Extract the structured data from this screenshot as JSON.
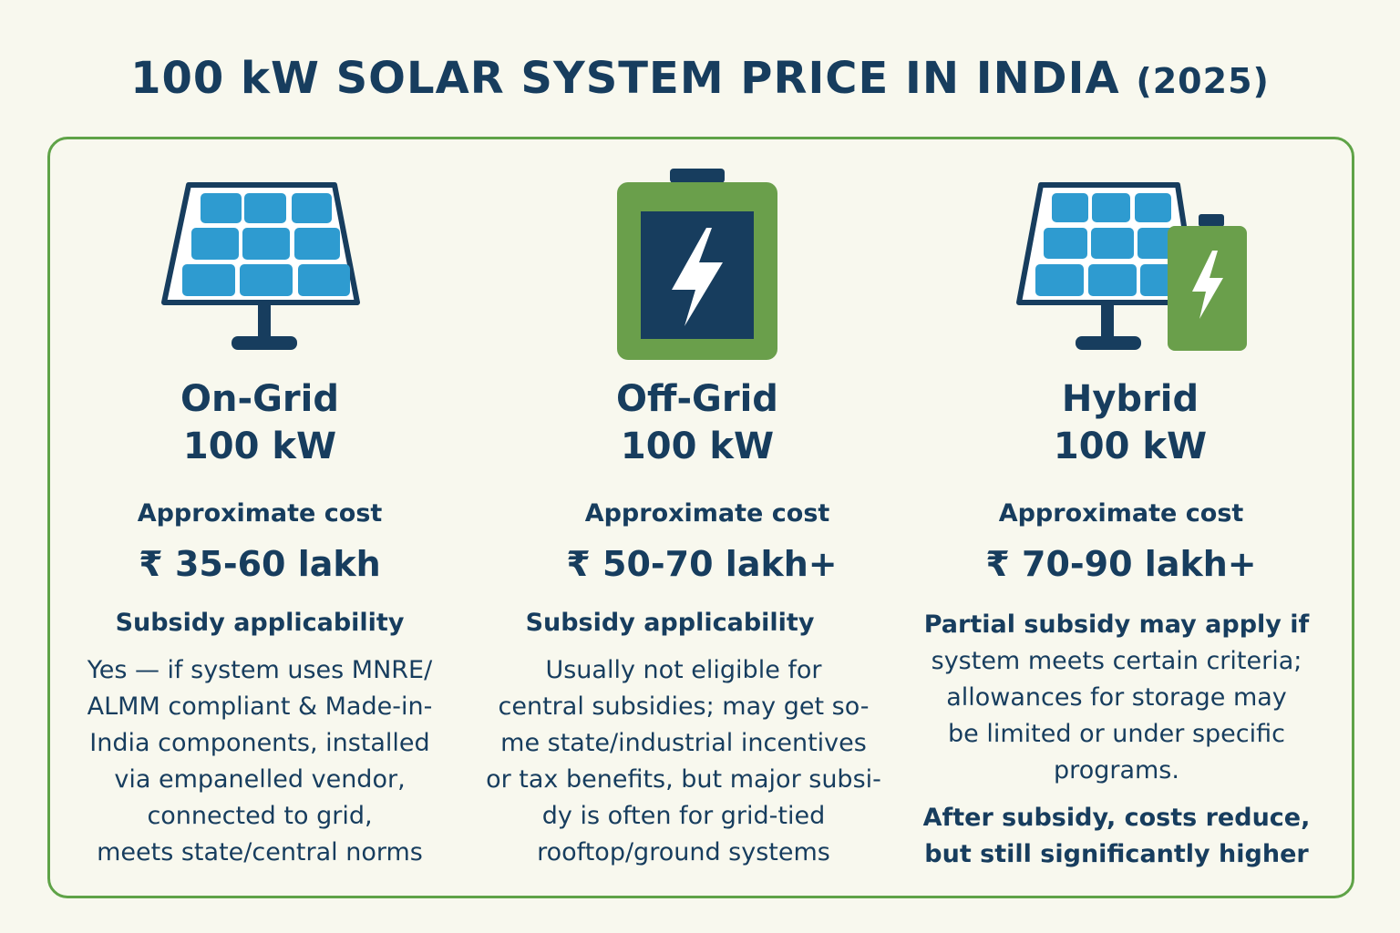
{
  "title": {
    "main": "100 kW SOLAR SYSTEM PRICE IN INDIA",
    "year": "(2025)"
  },
  "colors": {
    "navy": "#173d5e",
    "panel_blue": "#2e9bd0",
    "battery_green": "#6a9f4b",
    "border_green": "#5fa347",
    "background": "#f8f8ee"
  },
  "columns": [
    {
      "icon": "solar-panel-icon",
      "name": "On-Grid",
      "capacity": "100 kW",
      "cost_label": "Approximate cost",
      "price": "₹ 35-60 lakh",
      "subsidy_label": "Subsidy applicability",
      "details": [
        "Yes — if system uses MNRE/",
        "ALMM compliant & Made-in-",
        "India components, installed",
        "via empanelled vendor,",
        "connected to grid,",
        "meets state/central norms"
      ]
    },
    {
      "icon": "battery-icon",
      "name": "Off-Grid",
      "capacity": "100 kW",
      "cost_label": "Approximate cost",
      "price": "₹ 50-70 lakh+",
      "subsidy_label": "Subsidy applicability",
      "details": [
        "Usually not eligible for",
        "central subsidies; may get so-",
        "me state/industrial incentives",
        "or tax benefits, but major subsi-",
        "dy is often for grid-tied",
        "rooftop/ground systems"
      ]
    },
    {
      "icon": "hybrid-panel-battery-icon",
      "name": "Hybrid",
      "capacity": "100 kW",
      "cost_label": "Approximate cost",
      "price": "₹ 70-90 lakh+",
      "details": [
        "Partial subsidy may apply if",
        "system meets certain criteria;",
        "allowances for storage may",
        "be limited or under specific",
        "programs."
      ],
      "after": [
        "After subsidy, costs reduce,",
        "but still significantly higher"
      ]
    }
  ]
}
